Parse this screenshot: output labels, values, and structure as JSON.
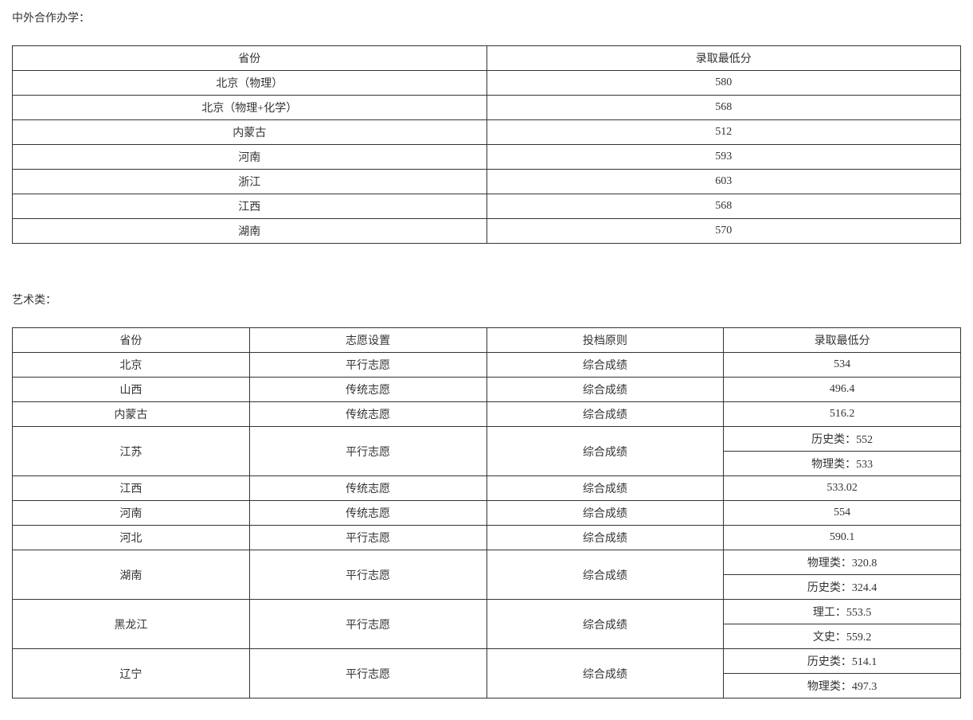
{
  "section1": {
    "title": "中外合作办学：",
    "headers": [
      "省份",
      "录取最低分"
    ],
    "rows": [
      [
        "北京（物理）",
        "580"
      ],
      [
        "北京（物理+化学）",
        "568"
      ],
      [
        "内蒙古",
        "512"
      ],
      [
        "河南",
        "593"
      ],
      [
        "浙江",
        "603"
      ],
      [
        "江西",
        "568"
      ],
      [
        "湖南",
        "570"
      ]
    ]
  },
  "section2": {
    "title": "艺术类：",
    "headers": [
      "省份",
      "志愿设置",
      "投档原则",
      "录取最低分"
    ],
    "rows": [
      {
        "cells": [
          "北京",
          "平行志愿",
          "综合成绩",
          "534"
        ],
        "subscore": null
      },
      {
        "cells": [
          "山西",
          "传统志愿",
          "综合成绩",
          "496.4"
        ],
        "subscore": null
      },
      {
        "cells": [
          "内蒙古",
          "传统志愿",
          "综合成绩",
          "516.2"
        ],
        "subscore": null
      },
      {
        "cells": [
          "江苏",
          "平行志愿",
          "综合成绩",
          null
        ],
        "subscore": [
          "历史类：552",
          "物理类：533"
        ]
      },
      {
        "cells": [
          "江西",
          "传统志愿",
          "综合成绩",
          "533.02"
        ],
        "subscore": null
      },
      {
        "cells": [
          "河南",
          "传统志愿",
          "综合成绩",
          "554"
        ],
        "subscore": null
      },
      {
        "cells": [
          "河北",
          "平行志愿",
          "综合成绩",
          "590.1"
        ],
        "subscore": null
      },
      {
        "cells": [
          "湖南",
          "平行志愿",
          "综合成绩",
          null
        ],
        "subscore": [
          "物理类：320.8",
          "历史类：324.4"
        ]
      },
      {
        "cells": [
          "黑龙江",
          "平行志愿",
          "综合成绩",
          null
        ],
        "subscore": [
          "理工：553.5",
          "文史：559.2"
        ]
      },
      {
        "cells": [
          "辽宁",
          "平行志愿",
          "综合成绩",
          null
        ],
        "subscore": [
          "历史类：514.1",
          "物理类：497.3"
        ]
      }
    ]
  }
}
